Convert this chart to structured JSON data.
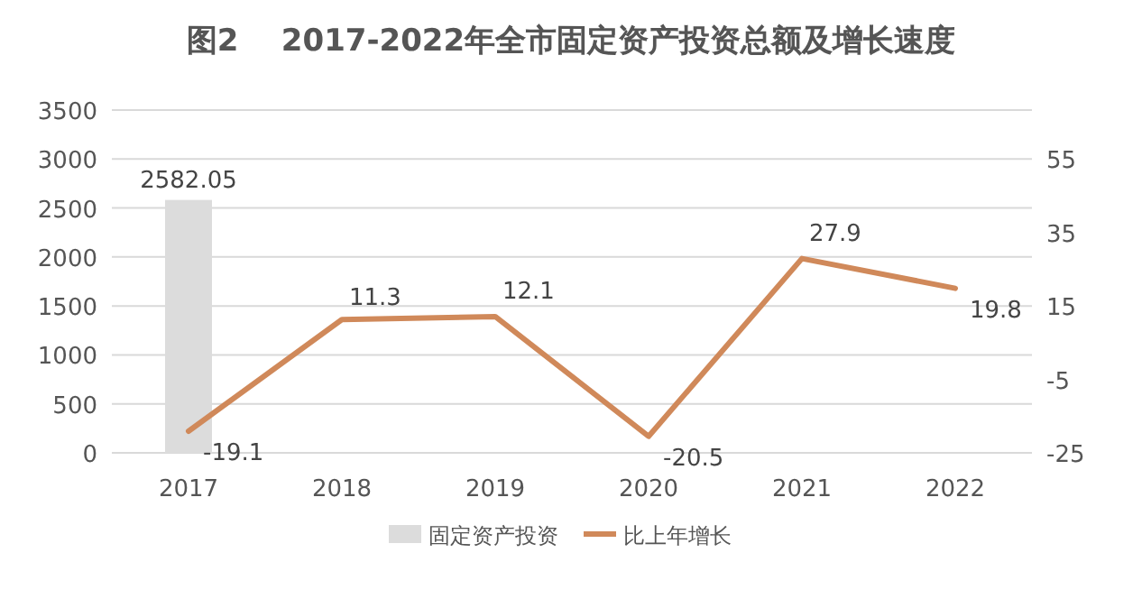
{
  "chart_data": {
    "type": "bar",
    "title": "图2    2017-2022年全市固定资产投资总额及增长速度",
    "categories": [
      "2017",
      "2018",
      "2019",
      "2020",
      "2021",
      "2022"
    ],
    "series": [
      {
        "name": "固定资产投资",
        "color": "#dcdcdc",
        "values": [
          2582.05,
          null,
          null,
          null,
          null,
          null
        ]
      },
      {
        "name": "比上年增长",
        "type": "line",
        "axis": "y2",
        "color": "#d0895a",
        "values": [
          -19.1,
          11.3,
          12.1,
          -20.5,
          27.9,
          19.8
        ]
      }
    ],
    "ylim": [
      0,
      3500
    ],
    "yticks": [
      0,
      500,
      1000,
      1500,
      2000,
      2500,
      3000,
      3500
    ],
    "y2lim": [
      -25,
      68.33
    ],
    "y2ticks": [
      -25,
      -5,
      15,
      35,
      55
    ],
    "grid": "y",
    "legend": "bottom",
    "data_labels": true,
    "marker": "none",
    "line_style": "solid"
  }
}
